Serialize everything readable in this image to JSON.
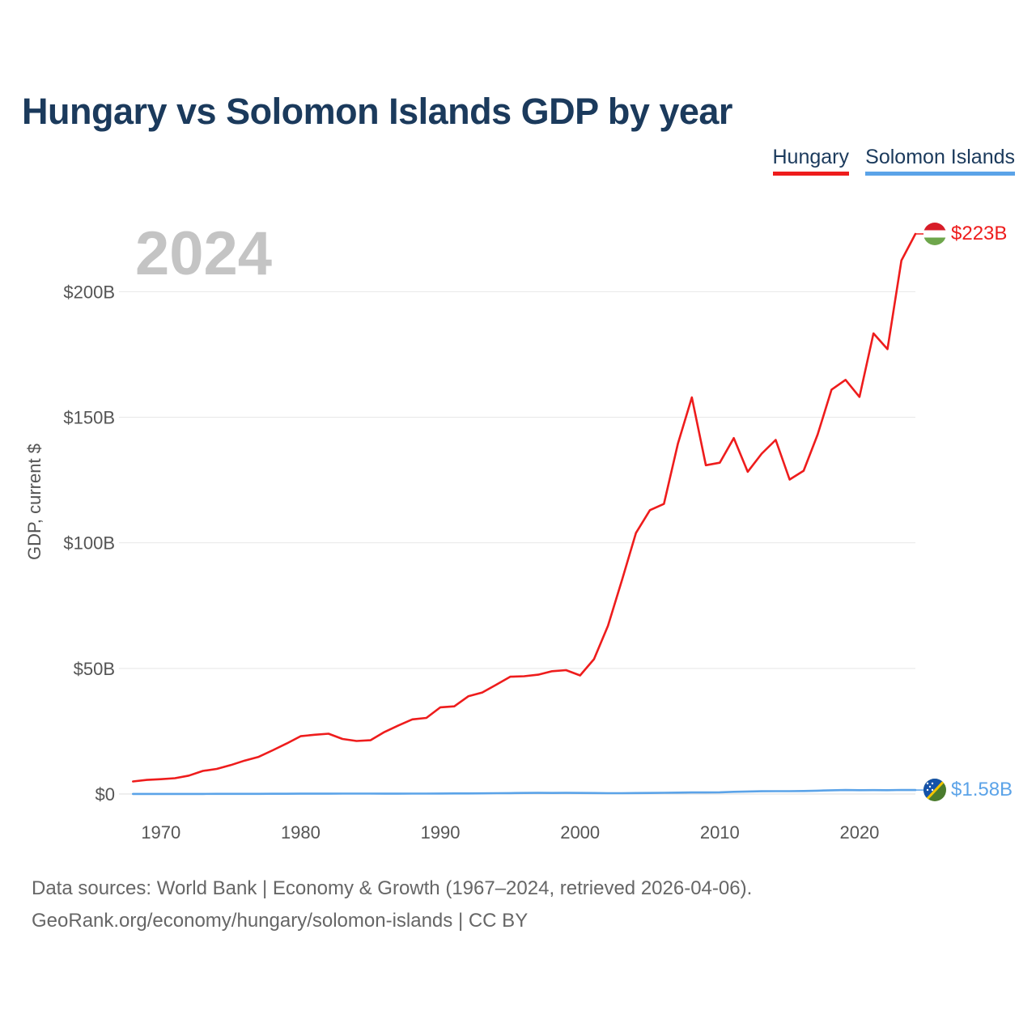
{
  "chart_data": {
    "type": "line",
    "title": "Hungary vs Solomon Islands GDP by year",
    "xlabel": "",
    "ylabel": "GDP, current $",
    "year_label": "2024",
    "xlim": [
      1967,
      2024
    ],
    "ylim": [
      0,
      223
    ],
    "x_ticks": [
      1970,
      1980,
      1990,
      2000,
      2010,
      2020
    ],
    "x_tick_labels": [
      "1970",
      "1980",
      "1990",
      "2000",
      "2010",
      "2020"
    ],
    "y_ticks": [
      0,
      50,
      100,
      150,
      200
    ],
    "y_tick_labels": [
      "$0",
      "$50B",
      "$100B",
      "$150B",
      "$200B"
    ],
    "legend": [
      "Hungary",
      "Solomon Islands"
    ],
    "legend_position": "top-right",
    "x": [
      1968,
      1969,
      1970,
      1971,
      1972,
      1973,
      1974,
      1975,
      1976,
      1977,
      1978,
      1979,
      1980,
      1981,
      1982,
      1983,
      1984,
      1985,
      1986,
      1987,
      1988,
      1989,
      1990,
      1991,
      1992,
      1993,
      1994,
      1995,
      1996,
      1997,
      1998,
      1999,
      2000,
      2001,
      2002,
      2003,
      2004,
      2005,
      2006,
      2007,
      2008,
      2009,
      2010,
      2011,
      2012,
      2013,
      2014,
      2015,
      2016,
      2017,
      2018,
      2019,
      2020,
      2021,
      2022,
      2023,
      2024
    ],
    "series": [
      {
        "name": "Hungary",
        "color": "#ee1c1c",
        "end_label": "$223B",
        "values": [
          5.0,
          5.6,
          5.9,
          6.3,
          7.3,
          9.2,
          10.0,
          11.5,
          13.3,
          14.8,
          17.4,
          20.1,
          23.0,
          23.6,
          24.0,
          21.9,
          21.1,
          21.4,
          24.7,
          27.3,
          29.7,
          30.3,
          34.5,
          34.9,
          38.9,
          40.4,
          43.5,
          46.7,
          46.9,
          47.5,
          48.9,
          49.3,
          47.2,
          53.7,
          67.0,
          85.2,
          103.9,
          113.0,
          115.5,
          139.4,
          157.9,
          130.9,
          131.9,
          141.7,
          128.3,
          135.5,
          141.0,
          125.2,
          128.7,
          143.1,
          161.0,
          164.9,
          158.1,
          183.4,
          177.1,
          212.4,
          223.0
        ]
      },
      {
        "name": "Solomon Islands",
        "color": "#5ba3e8",
        "end_label": "$1.58B",
        "values": [
          0.02,
          0.02,
          0.02,
          0.03,
          0.03,
          0.04,
          0.05,
          0.05,
          0.06,
          0.08,
          0.09,
          0.11,
          0.12,
          0.14,
          0.14,
          0.15,
          0.17,
          0.16,
          0.13,
          0.14,
          0.16,
          0.17,
          0.19,
          0.21,
          0.24,
          0.27,
          0.32,
          0.37,
          0.43,
          0.46,
          0.42,
          0.44,
          0.42,
          0.39,
          0.32,
          0.33,
          0.38,
          0.42,
          0.47,
          0.54,
          0.6,
          0.6,
          0.68,
          0.86,
          1.0,
          1.1,
          1.14,
          1.13,
          1.2,
          1.32,
          1.48,
          1.57,
          1.5,
          1.56,
          1.5,
          1.6,
          1.58
        ]
      }
    ]
  },
  "footer": {
    "line1": "Data sources: World Bank | Economy & Growth (1967–2024, retrieved 2026-04-06).",
    "line2": "GeoRank.org/economy/hungary/solomon-islands | CC BY"
  }
}
